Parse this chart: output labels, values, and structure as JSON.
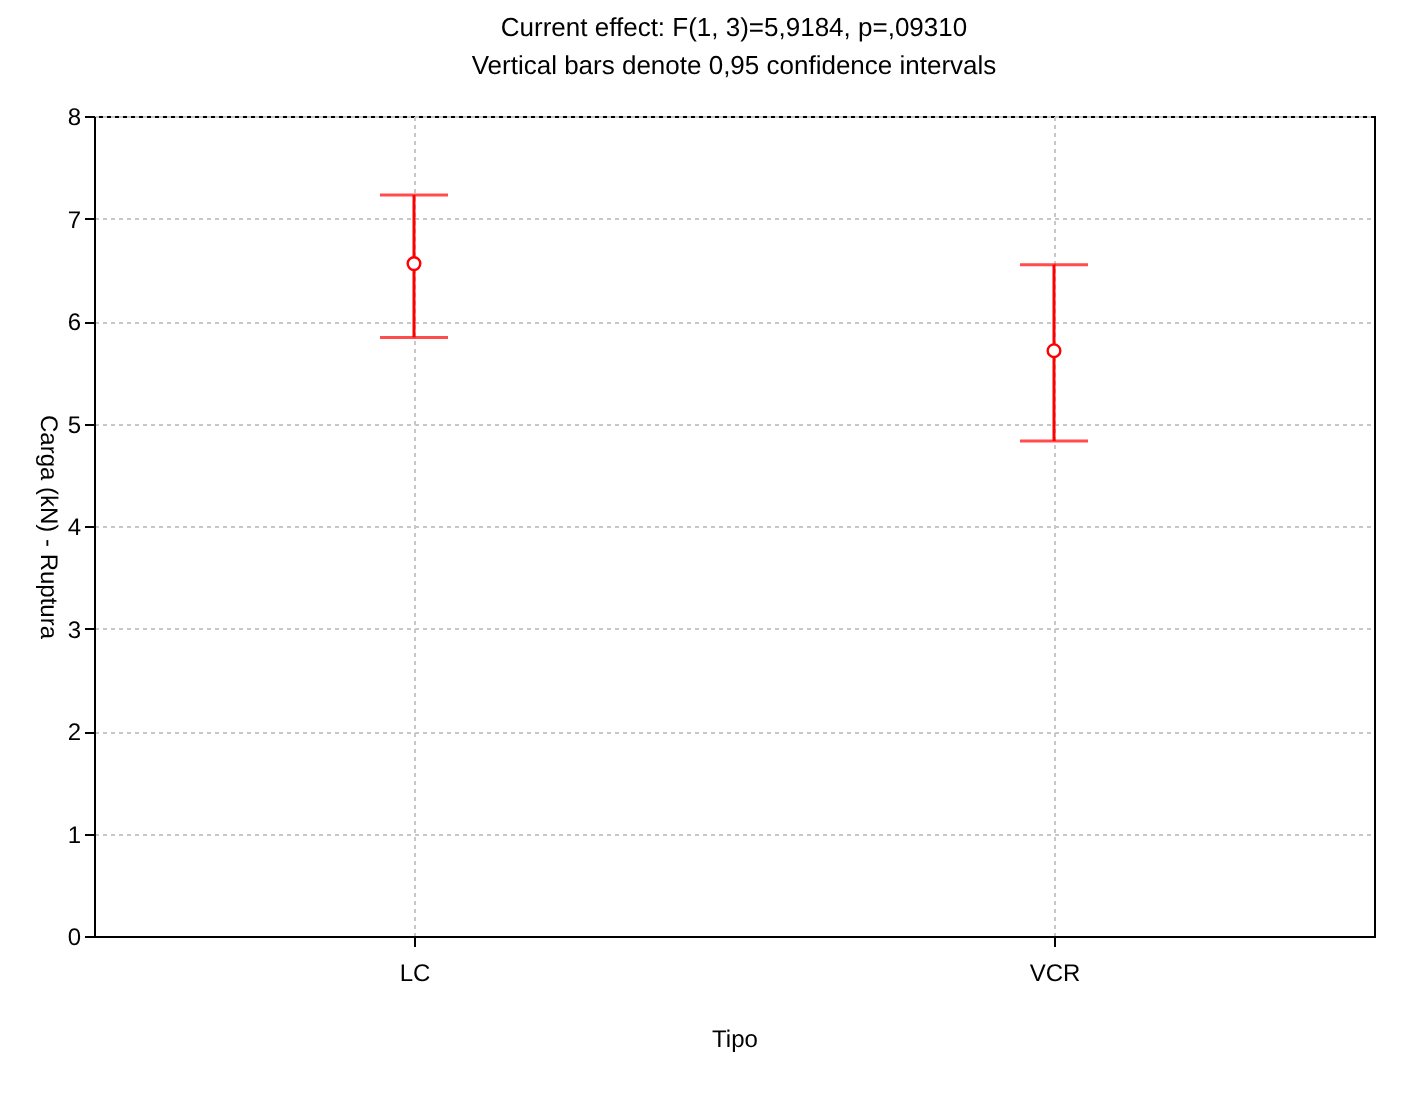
{
  "chart_data": {
    "type": "scatter",
    "title": "Current effect: F(1, 3)=5,9184, p=,09310",
    "subtitle": "Vertical bars denote 0,95 confidence intervals",
    "xlabel": "Tipo",
    "ylabel": "Carga (kN) - Ruptura",
    "categories": [
      "LC",
      "VCR"
    ],
    "series": [
      {
        "color": "#ff0000",
        "values": [
          6.56,
          5.71
        ],
        "errors": [
          [
            5.84,
            7.23
          ],
          [
            4.83,
            6.55
          ]
        ]
      }
    ],
    "ylim": [
      0,
      8
    ],
    "yticks": [
      0,
      1,
      2,
      3,
      4,
      5,
      6,
      7,
      8
    ],
    "grid": true,
    "marker": "circle"
  }
}
